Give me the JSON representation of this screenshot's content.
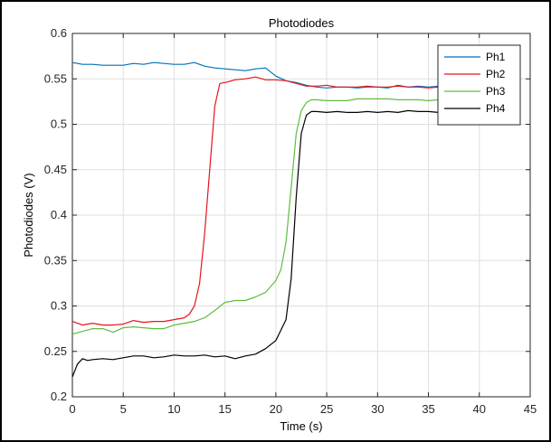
{
  "chart_data": {
    "type": "line",
    "title": "Photodiodes",
    "xlabel": "Time (s)",
    "ylabel": "Photodiodes (V)",
    "xlim": [
      0,
      45
    ],
    "ylim": [
      0.2,
      0.6
    ],
    "xticks": [
      0,
      5,
      10,
      15,
      20,
      25,
      30,
      35,
      40,
      45
    ],
    "yticks": [
      0.2,
      0.25,
      0.3,
      0.35,
      0.4,
      0.45,
      0.5,
      0.55,
      0.6
    ],
    "xtick_labels": [
      "0",
      "5",
      "10",
      "15",
      "20",
      "25",
      "30",
      "35",
      "40",
      "45"
    ],
    "ytick_labels": [
      "0.2",
      "0.25",
      "0.3",
      "0.35",
      "0.4",
      "0.45",
      "0.5",
      "0.55",
      "0.6"
    ],
    "grid": true,
    "legend_position": "top-right",
    "series": [
      {
        "name": "Ph1",
        "color": "#0072BD",
        "x": [
          0,
          1,
          2,
          3,
          4,
          5,
          6,
          7,
          8,
          9,
          10,
          11,
          12,
          13,
          14,
          15,
          16,
          17,
          18,
          19,
          20,
          21,
          22,
          23,
          24,
          25,
          26,
          27,
          28,
          29,
          30,
          31,
          32,
          33,
          34,
          35,
          36,
          37
        ],
        "y": [
          0.568,
          0.566,
          0.566,
          0.565,
          0.565,
          0.565,
          0.567,
          0.566,
          0.568,
          0.567,
          0.566,
          0.566,
          0.568,
          0.564,
          0.562,
          0.561,
          0.56,
          0.559,
          0.561,
          0.562,
          0.553,
          0.548,
          0.546,
          0.543,
          0.541,
          0.54,
          0.541,
          0.541,
          0.54,
          0.541,
          0.541,
          0.54,
          0.543,
          0.541,
          0.542,
          0.541,
          0.542,
          0.541
        ]
      },
      {
        "name": "Ph2",
        "color": "#E6141E",
        "x": [
          0,
          1,
          2,
          3,
          4,
          5,
          6,
          7,
          8,
          9,
          10,
          11,
          11.5,
          12,
          12.5,
          13,
          13.5,
          14,
          14.5,
          15,
          16,
          17,
          18,
          19,
          20,
          21,
          22,
          23,
          24,
          25,
          26,
          27,
          28,
          29,
          30,
          31,
          32,
          33,
          34,
          35,
          36,
          37
        ],
        "y": [
          0.283,
          0.279,
          0.281,
          0.279,
          0.279,
          0.28,
          0.284,
          0.282,
          0.283,
          0.283,
          0.285,
          0.287,
          0.291,
          0.3,
          0.325,
          0.38,
          0.45,
          0.52,
          0.545,
          0.546,
          0.549,
          0.55,
          0.552,
          0.549,
          0.549,
          0.548,
          0.545,
          0.542,
          0.542,
          0.543,
          0.541,
          0.541,
          0.541,
          0.542,
          0.541,
          0.541,
          0.542,
          0.541,
          0.541,
          0.54,
          0.541,
          0.54
        ]
      },
      {
        "name": "Ph3",
        "color": "#5EBD3E",
        "x": [
          0,
          1,
          2,
          3,
          4,
          5,
          6,
          7,
          8,
          9,
          10,
          11,
          12,
          13,
          14,
          15,
          16,
          17,
          18,
          19,
          20,
          20.5,
          21,
          21.5,
          22,
          22.5,
          23,
          23.5,
          24,
          25,
          26,
          27,
          28,
          29,
          30,
          31,
          32,
          33,
          34,
          35,
          36,
          37
        ],
        "y": [
          0.269,
          0.272,
          0.275,
          0.275,
          0.271,
          0.276,
          0.277,
          0.276,
          0.275,
          0.275,
          0.279,
          0.281,
          0.283,
          0.287,
          0.295,
          0.304,
          0.306,
          0.306,
          0.31,
          0.315,
          0.328,
          0.34,
          0.37,
          0.43,
          0.49,
          0.515,
          0.524,
          0.527,
          0.527,
          0.526,
          0.526,
          0.526,
          0.528,
          0.528,
          0.528,
          0.528,
          0.527,
          0.527,
          0.527,
          0.526,
          0.527,
          0.525
        ]
      },
      {
        "name": "Ph4",
        "color": "#000000",
        "x": [
          0,
          0.5,
          1,
          1.5,
          2,
          3,
          4,
          5,
          6,
          7,
          8,
          9,
          10,
          11,
          12,
          13,
          14,
          15,
          16,
          17,
          18,
          19,
          20,
          21,
          21.5,
          22,
          22.5,
          23,
          23.5,
          24,
          25,
          26,
          27,
          28,
          29,
          30,
          31,
          32,
          33,
          34,
          35,
          36,
          37
        ],
        "y": [
          0.222,
          0.236,
          0.242,
          0.24,
          0.241,
          0.242,
          0.241,
          0.243,
          0.245,
          0.245,
          0.243,
          0.244,
          0.246,
          0.245,
          0.245,
          0.246,
          0.244,
          0.245,
          0.242,
          0.245,
          0.247,
          0.253,
          0.262,
          0.285,
          0.33,
          0.42,
          0.49,
          0.51,
          0.514,
          0.514,
          0.513,
          0.514,
          0.513,
          0.513,
          0.514,
          0.513,
          0.514,
          0.513,
          0.515,
          0.514,
          0.514,
          0.513,
          0.513
        ]
      }
    ]
  }
}
